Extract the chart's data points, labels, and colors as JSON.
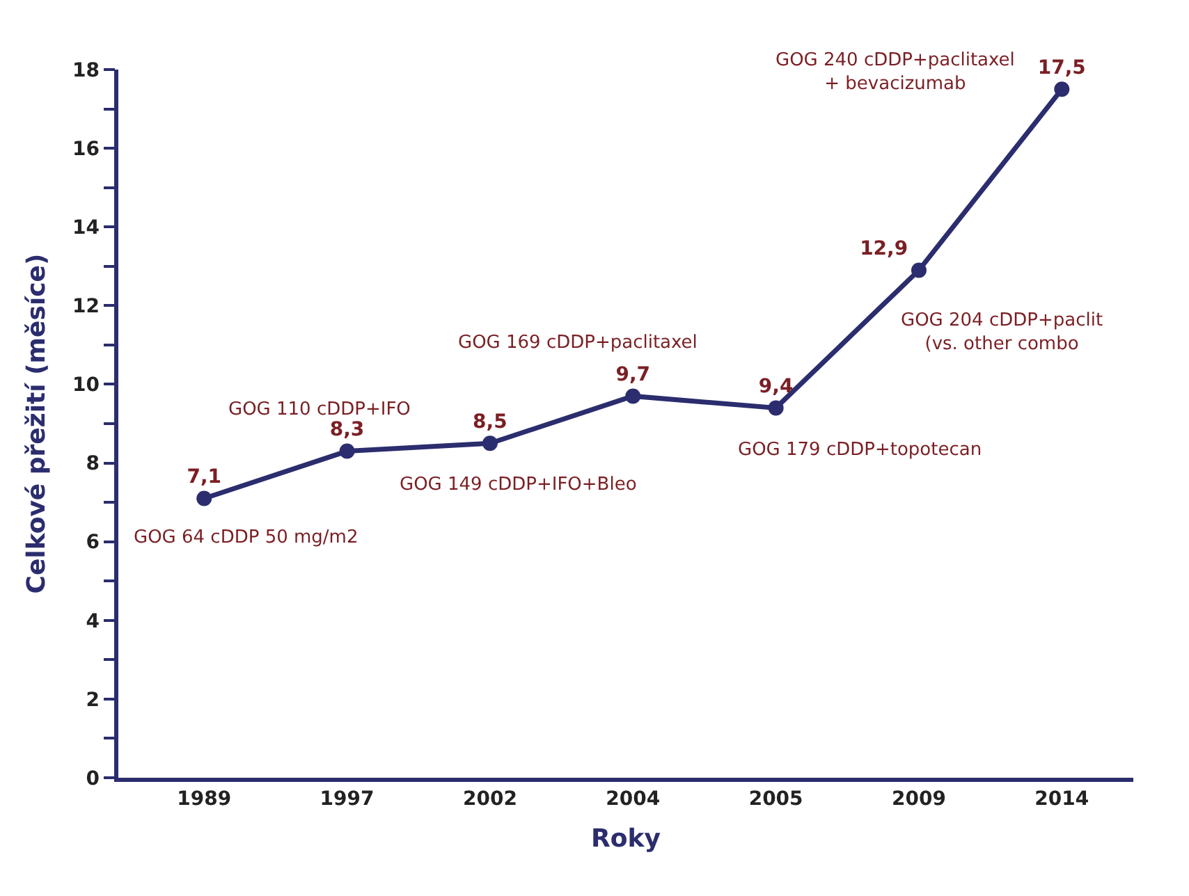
{
  "chart_data": {
    "type": "line",
    "xlabel": "Roky",
    "ylabel": "Celkové přežití (měsíce)",
    "categories": [
      "1989",
      "1997",
      "2002",
      "2004",
      "2005",
      "2009",
      "2014"
    ],
    "series": [
      {
        "color": "#2b2d6e",
        "values": [
          7.1,
          8.3,
          8.5,
          9.7,
          9.4,
          12.9,
          17.5
        ],
        "value_labels": [
          "7,1",
          "8,3",
          "8,5",
          "9,7",
          "9,4",
          "12,9",
          "17,5"
        ]
      }
    ],
    "ylim": [
      0,
      18
    ],
    "yticks": [
      0,
      {
        "value": 1,
        "label": null
      },
      2,
      {
        "value": 3,
        "label": null
      },
      4,
      {
        "value": 5,
        "label": null
      },
      6,
      {
        "value": 7,
        "label": null
      },
      8,
      {
        "value": 9,
        "label": null
      },
      10,
      {
        "value": 11,
        "label": null
      },
      12,
      {
        "value": 13,
        "label": null
      },
      14,
      {
        "value": 15,
        "label": null
      },
      16,
      {
        "value": 17,
        "label": null
      },
      18
    ],
    "annotations": [
      {
        "text": "GOG 64 cDDP 50 mg/m2",
        "x": "1989",
        "y": 7.1
      },
      {
        "text": "GOG 110 cDDP+IFO",
        "x": "1997",
        "y": 8.3
      },
      {
        "text": "GOG 149 cDDP+IFO+Bleo",
        "x": "2002",
        "y": 8.5
      },
      {
        "text": "GOG 169 cDDP+paclitaxel",
        "x": "2004",
        "y": 9.7
      },
      {
        "text": "GOG 179 cDDP+topotecan",
        "x": "2005",
        "y": 9.4
      },
      {
        "text": "GOG 204 cDDP+paclit\n(vs. other combo",
        "x": "2009",
        "y": 12.9
      },
      {
        "text": "GOG 240 cDDP+paclitaxel\n+ bevacizumab",
        "x": "2014",
        "y": 17.5
      }
    ],
    "marker": "circle",
    "line_style": "solid"
  }
}
